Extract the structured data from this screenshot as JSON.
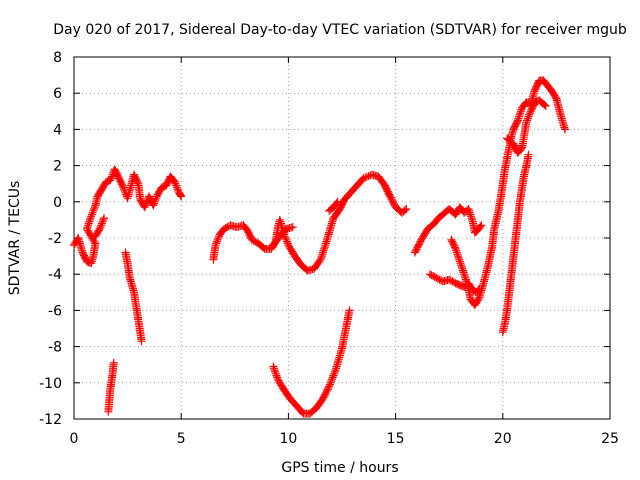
{
  "chart_data": {
    "type": "scatter",
    "title": "Day 020 of 2017, Sidereal Day-to-day VTEC variation (SDTVAR) for receiver mgub",
    "xlabel": "GPS time / hours",
    "ylabel": "SDTVAR / TECUs",
    "xlim": [
      0,
      25
    ],
    "ylim": [
      -12,
      8
    ],
    "xticks": [
      0,
      5,
      10,
      15,
      20,
      25
    ],
    "yticks": [
      -12,
      -10,
      -8,
      -6,
      -4,
      -2,
      0,
      2,
      4,
      6,
      8
    ],
    "grid": true,
    "marker": "+",
    "color": "#ff0000",
    "series": [
      {
        "points": [
          [
            0.0,
            -2.4
          ],
          [
            0.2,
            -2.0
          ],
          [
            0.4,
            -2.8
          ],
          [
            0.6,
            -3.3
          ],
          [
            0.8,
            -3.4
          ],
          [
            0.9,
            -3.0
          ],
          [
            1.0,
            -2.3
          ],
          [
            0.6,
            -1.5
          ],
          [
            0.8,
            -0.8
          ],
          [
            1.0,
            -0.2
          ],
          [
            1.1,
            0.3
          ],
          [
            1.3,
            0.7
          ],
          [
            1.5,
            1.1
          ],
          [
            1.7,
            1.2
          ],
          [
            1.9,
            1.8
          ],
          [
            2.1,
            1.3
          ],
          [
            2.3,
            0.8
          ],
          [
            2.5,
            0.2
          ],
          [
            2.6,
            0.6
          ],
          [
            2.8,
            1.5
          ],
          [
            3.0,
            1.0
          ],
          [
            3.1,
            0.1
          ],
          [
            3.3,
            -0.3
          ],
          [
            3.5,
            0.3
          ],
          [
            3.7,
            -0.2
          ],
          [
            3.9,
            0.4
          ],
          [
            4.1,
            0.8
          ],
          [
            4.3,
            0.9
          ],
          [
            4.5,
            1.4
          ],
          [
            4.7,
            1.1
          ],
          [
            4.8,
            0.8
          ],
          [
            4.9,
            0.5
          ],
          [
            5.0,
            0.3
          ]
        ]
      },
      {
        "points": [
          [
            1.0,
            -1.9
          ],
          [
            1.2,
            -1.5
          ],
          [
            1.4,
            -0.9
          ]
        ]
      },
      {
        "points": [
          [
            2.4,
            -2.8
          ],
          [
            2.5,
            -3.4
          ],
          [
            2.6,
            -4.2
          ],
          [
            2.8,
            -5.0
          ],
          [
            2.9,
            -5.8
          ],
          [
            3.0,
            -6.5
          ],
          [
            3.1,
            -7.3
          ],
          [
            3.15,
            -7.7
          ]
        ]
      },
      {
        "points": [
          [
            1.6,
            -11.6
          ],
          [
            1.65,
            -10.9
          ],
          [
            1.7,
            -10.3
          ],
          [
            1.8,
            -9.5
          ],
          [
            1.85,
            -8.9
          ]
        ]
      },
      {
        "points": [
          [
            6.5,
            -3.2
          ],
          [
            6.6,
            -2.4
          ],
          [
            6.8,
            -1.8
          ],
          [
            7.0,
            -1.5
          ],
          [
            7.3,
            -1.3
          ],
          [
            7.6,
            -1.4
          ],
          [
            7.9,
            -1.3
          ],
          [
            8.1,
            -1.6
          ],
          [
            8.3,
            -2.1
          ],
          [
            8.6,
            -2.3
          ],
          [
            8.9,
            -2.6
          ],
          [
            9.2,
            -2.6
          ],
          [
            9.4,
            -2.2
          ],
          [
            9.5,
            -1.5
          ],
          [
            9.6,
            -1.0
          ],
          [
            9.8,
            -1.8
          ],
          [
            10.0,
            -2.4
          ],
          [
            10.3,
            -3.0
          ],
          [
            10.6,
            -3.5
          ],
          [
            10.9,
            -3.8
          ],
          [
            11.2,
            -3.7
          ],
          [
            11.5,
            -3.2
          ],
          [
            11.7,
            -2.5
          ],
          [
            11.9,
            -1.7
          ],
          [
            12.1,
            -0.9
          ],
          [
            12.4,
            -0.4
          ],
          [
            12.6,
            0.1
          ],
          [
            12.9,
            0.5
          ],
          [
            13.2,
            0.9
          ],
          [
            13.5,
            1.3
          ],
          [
            13.9,
            1.5
          ],
          [
            14.2,
            1.4
          ],
          [
            14.5,
            0.9
          ],
          [
            14.7,
            0.4
          ],
          [
            15.0,
            -0.3
          ],
          [
            15.3,
            -0.6
          ],
          [
            15.5,
            -0.4
          ]
        ]
      },
      {
        "points": [
          [
            9.3,
            -2.4
          ],
          [
            9.6,
            -1.9
          ],
          [
            9.9,
            -1.5
          ],
          [
            10.2,
            -1.4
          ]
        ]
      },
      {
        "points": [
          [
            11.9,
            -0.5
          ],
          [
            12.1,
            -0.3
          ],
          [
            12.3,
            0.0
          ]
        ]
      },
      {
        "points": [
          [
            9.3,
            -9.1
          ],
          [
            9.5,
            -9.8
          ],
          [
            9.8,
            -10.4
          ],
          [
            10.1,
            -10.9
          ],
          [
            10.4,
            -11.3
          ],
          [
            10.7,
            -11.7
          ],
          [
            11.0,
            -11.7
          ],
          [
            11.3,
            -11.4
          ],
          [
            11.6,
            -10.9
          ],
          [
            11.9,
            -10.2
          ],
          [
            12.2,
            -9.3
          ],
          [
            12.5,
            -8.1
          ],
          [
            12.7,
            -6.9
          ],
          [
            12.85,
            -6.0
          ]
        ]
      },
      {
        "points": [
          [
            15.9,
            -2.8
          ],
          [
            16.2,
            -2.1
          ],
          [
            16.5,
            -1.5
          ],
          [
            16.8,
            -1.2
          ],
          [
            17.0,
            -0.9
          ],
          [
            17.2,
            -0.7
          ],
          [
            17.5,
            -0.4
          ],
          [
            17.8,
            -0.7
          ],
          [
            18.0,
            -0.3
          ],
          [
            18.2,
            -0.6
          ],
          [
            18.4,
            -0.4
          ],
          [
            18.6,
            -1.1
          ],
          [
            18.7,
            -1.7
          ],
          [
            18.8,
            -1.6
          ],
          [
            19.0,
            -1.3
          ]
        ]
      },
      {
        "points": [
          [
            16.6,
            -4.0
          ],
          [
            16.9,
            -4.2
          ],
          [
            17.2,
            -4.4
          ],
          [
            17.5,
            -4.3
          ],
          [
            17.8,
            -4.5
          ],
          [
            18.0,
            -4.6
          ],
          [
            18.2,
            -4.7
          ],
          [
            18.4,
            -4.5
          ],
          [
            18.6,
            -4.9
          ],
          [
            18.8,
            -5.0
          ],
          [
            18.9,
            -4.8
          ]
        ]
      },
      {
        "points": [
          [
            17.6,
            -2.1
          ],
          [
            17.8,
            -2.6
          ],
          [
            18.0,
            -3.3
          ],
          [
            18.2,
            -4.0
          ],
          [
            18.4,
            -4.8
          ],
          [
            18.5,
            -5.4
          ],
          [
            18.7,
            -5.7
          ],
          [
            18.9,
            -5.3
          ],
          [
            19.1,
            -4.5
          ],
          [
            19.3,
            -3.6
          ],
          [
            19.5,
            -2.5
          ],
          [
            19.6,
            -1.5
          ],
          [
            19.8,
            -0.5
          ],
          [
            19.9,
            0.2
          ],
          [
            20.0,
            1.0
          ],
          [
            20.1,
            1.8
          ],
          [
            20.2,
            2.4
          ],
          [
            20.3,
            3.0
          ],
          [
            20.4,
            3.6
          ],
          [
            20.5,
            4.0
          ],
          [
            20.7,
            4.5
          ],
          [
            20.9,
            5.2
          ],
          [
            21.1,
            5.5
          ],
          [
            21.3,
            5.4
          ],
          [
            21.5,
            6.2
          ],
          [
            21.7,
            6.7
          ],
          [
            21.9,
            6.7
          ],
          [
            22.1,
            6.4
          ],
          [
            22.3,
            6.1
          ],
          [
            22.5,
            5.7
          ],
          [
            22.7,
            4.8
          ],
          [
            22.9,
            4.0
          ]
        ]
      },
      {
        "points": [
          [
            20.2,
            3.5
          ],
          [
            20.5,
            3.2
          ],
          [
            20.7,
            2.7
          ],
          [
            20.9,
            3.0
          ],
          [
            21.1,
            4.4
          ],
          [
            21.3,
            5.0
          ],
          [
            21.5,
            5.5
          ],
          [
            21.7,
            5.6
          ],
          [
            22.0,
            5.3
          ]
        ]
      },
      {
        "points": [
          [
            20.0,
            -7.2
          ],
          [
            20.1,
            -6.7
          ],
          [
            20.2,
            -6.0
          ],
          [
            20.3,
            -5.0
          ],
          [
            20.4,
            -4.0
          ],
          [
            20.5,
            -3.0
          ],
          [
            20.6,
            -2.0
          ],
          [
            20.7,
            -1.0
          ],
          [
            20.8,
            0.0
          ],
          [
            20.9,
            0.8
          ],
          [
            21.0,
            1.5
          ],
          [
            21.1,
            2.0
          ],
          [
            21.2,
            2.6
          ]
        ]
      }
    ]
  }
}
